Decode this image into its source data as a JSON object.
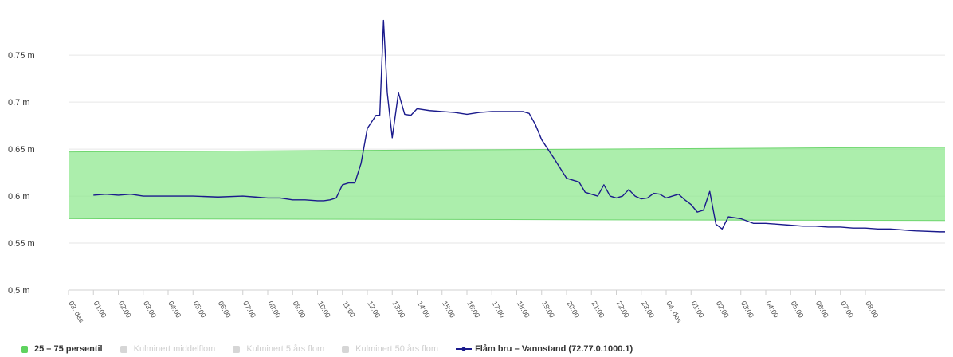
{
  "chart_data": {
    "type": "line",
    "title": "",
    "xlabel": "",
    "ylabel": "",
    "ylim": [
      0.5,
      0.79
    ],
    "y_ticks": [
      {
        "value": 0.5,
        "label": "0,5 m"
      },
      {
        "value": 0.55,
        "label": "0.55 m"
      },
      {
        "value": 0.6,
        "label": "0.6 m"
      },
      {
        "value": 0.65,
        "label": "0.65 m"
      },
      {
        "value": 0.7,
        "label": "0.7 m"
      },
      {
        "value": 0.75,
        "label": "0.75 m"
      }
    ],
    "x_unit": "hours",
    "xlim": [
      0,
      35.2
    ],
    "x_ticks": [
      {
        "x": 0,
        "label": "03. des"
      },
      {
        "x": 1,
        "label": "01:00"
      },
      {
        "x": 2,
        "label": "02:00"
      },
      {
        "x": 3,
        "label": "03:00"
      },
      {
        "x": 4,
        "label": "04:00"
      },
      {
        "x": 5,
        "label": "05:00"
      },
      {
        "x": 6,
        "label": "06:00"
      },
      {
        "x": 7,
        "label": "07:00"
      },
      {
        "x": 8,
        "label": "08:00"
      },
      {
        "x": 9,
        "label": "09:00"
      },
      {
        "x": 10,
        "label": "10:00"
      },
      {
        "x": 11,
        "label": "11:00"
      },
      {
        "x": 12,
        "label": "12:00"
      },
      {
        "x": 13,
        "label": "13:00"
      },
      {
        "x": 14,
        "label": "14:00"
      },
      {
        "x": 15,
        "label": "15:00"
      },
      {
        "x": 16,
        "label": "16:00"
      },
      {
        "x": 17,
        "label": "17:00"
      },
      {
        "x": 18,
        "label": "18:00"
      },
      {
        "x": 19,
        "label": "19:00"
      },
      {
        "x": 20,
        "label": "20:00"
      },
      {
        "x": 21,
        "label": "21:00"
      },
      {
        "x": 22,
        "label": "22:00"
      },
      {
        "x": 23,
        "label": "23:00"
      },
      {
        "x": 24,
        "label": "04. des"
      },
      {
        "x": 25,
        "label": "01:00"
      },
      {
        "x": 26,
        "label": "02:00"
      },
      {
        "x": 27,
        "label": "03:00"
      },
      {
        "x": 28,
        "label": "04:00"
      },
      {
        "x": 29,
        "label": "05:00"
      },
      {
        "x": 30,
        "label": "06:00"
      },
      {
        "x": 31,
        "label": "07:00"
      },
      {
        "x": 32,
        "label": "08:00"
      }
    ],
    "grid": true,
    "legend_position": "bottom-left",
    "series": [
      {
        "name": "25 – 75 persentil",
        "type": "arearange",
        "color": "#90e890",
        "x": [
          0,
          35.2
        ],
        "low": [
          0.576,
          0.574
        ],
        "high": [
          0.647,
          0.652
        ]
      },
      {
        "name": "Flåm bru – Vannstand (72.77.0.1000.1)",
        "type": "line",
        "color": "#1a1a8c",
        "x": [
          1.0,
          1.5,
          2.0,
          2.5,
          3.0,
          4.0,
          5.0,
          6.0,
          7.0,
          7.5,
          8.0,
          8.5,
          9.0,
          9.5,
          10.0,
          10.25,
          10.5,
          10.75,
          11.0,
          11.25,
          11.5,
          11.75,
          12.0,
          12.25,
          12.35,
          12.5,
          12.65,
          12.8,
          13.0,
          13.25,
          13.5,
          13.75,
          14.0,
          14.5,
          15.0,
          15.5,
          16.0,
          16.5,
          17.0,
          17.5,
          18.0,
          18.25,
          18.5,
          18.75,
          19.0,
          19.5,
          20.0,
          20.25,
          20.5,
          20.75,
          21.0,
          21.25,
          21.5,
          21.75,
          22.0,
          22.25,
          22.5,
          22.75,
          23.0,
          23.25,
          23.5,
          23.75,
          24.0,
          24.25,
          24.5,
          24.75,
          25.0,
          25.25,
          25.5,
          25.75,
          26.0,
          26.25,
          26.5,
          27.0,
          27.5,
          28.0,
          28.5,
          29.0,
          29.5,
          30.0,
          30.5,
          31.0,
          31.5,
          32.0,
          32.5,
          33.0,
          34.0,
          35.0,
          35.2
        ],
        "y": [
          0.601,
          0.602,
          0.601,
          0.602,
          0.6,
          0.6,
          0.6,
          0.599,
          0.6,
          0.599,
          0.598,
          0.598,
          0.596,
          0.596,
          0.595,
          0.595,
          0.596,
          0.598,
          0.612,
          0.614,
          0.614,
          0.635,
          0.672,
          0.682,
          0.686,
          0.686,
          0.787,
          0.71,
          0.662,
          0.71,
          0.687,
          0.686,
          0.693,
          0.691,
          0.69,
          0.689,
          0.687,
          0.689,
          0.69,
          0.69,
          0.69,
          0.69,
          0.688,
          0.676,
          0.66,
          0.64,
          0.619,
          0.617,
          0.615,
          0.604,
          0.602,
          0.6,
          0.612,
          0.6,
          0.598,
          0.6,
          0.607,
          0.6,
          0.597,
          0.598,
          0.603,
          0.602,
          0.598,
          0.6,
          0.602,
          0.596,
          0.591,
          0.583,
          0.585,
          0.605,
          0.57,
          0.565,
          0.578,
          0.576,
          0.571,
          0.571,
          0.57,
          0.569,
          0.568,
          0.568,
          0.567,
          0.567,
          0.566,
          0.566,
          0.565,
          0.565,
          0.563,
          0.562,
          0.562
        ]
      }
    ],
    "legend": [
      {
        "label": "25 – 75 persentil",
        "color": "#5fd35f",
        "active": true
      },
      {
        "label": "Kulminert middelflom",
        "color": "#c8c8c8",
        "active": false
      },
      {
        "label": "Kulminert 5 års flom",
        "color": "#c8c8c8",
        "active": false
      },
      {
        "label": "Kulminert 50 års flom",
        "color": "#c8c8c8",
        "active": false
      },
      {
        "label": "Flåm bru – Vannstand (72.77.0.1000.1)",
        "color": "#1a1a8c",
        "active": true
      }
    ]
  }
}
